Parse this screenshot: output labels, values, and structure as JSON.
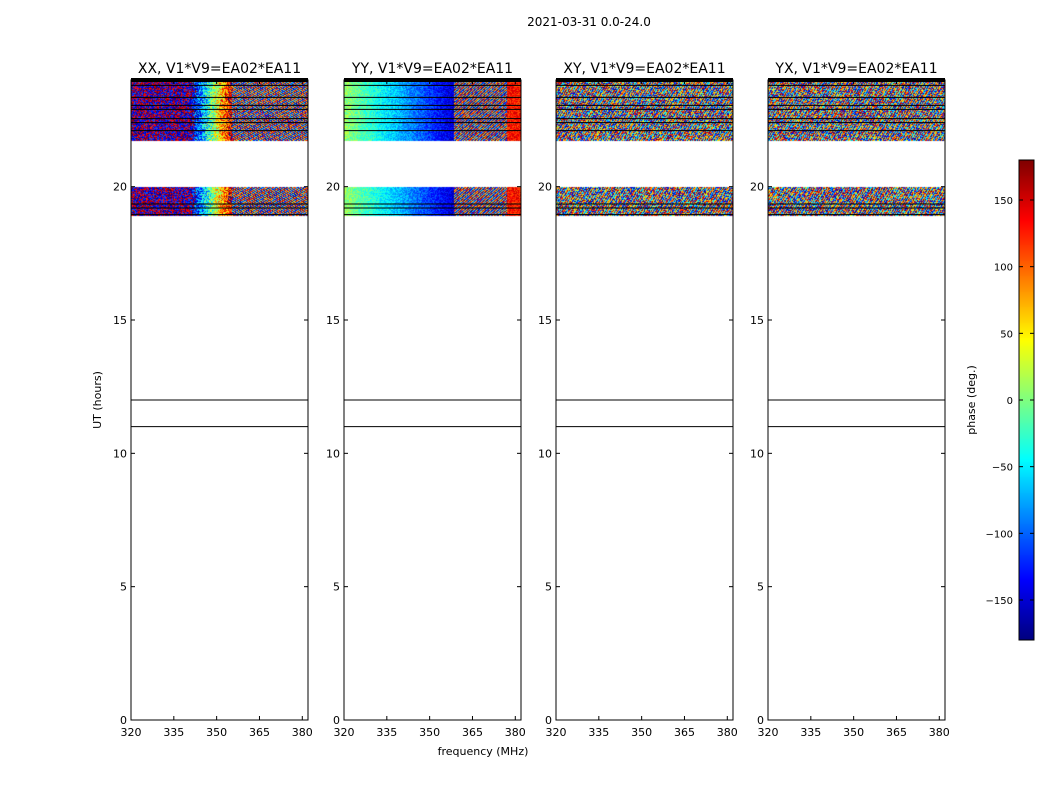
{
  "figure": {
    "suptitle": "2021-03-31 0.0-24.0",
    "xlabel": "frequency (MHz)",
    "ylabel": "UT (hours)"
  },
  "chart_data": {
    "type": "heatmap",
    "title": "2021-03-31 0.0-24.0",
    "xlabel": "frequency (MHz)",
    "ylabel": "UT (hours)",
    "xlim": [
      320,
      382
    ],
    "ylim": [
      0,
      24
    ],
    "xticks": [
      320,
      335,
      350,
      365,
      380
    ],
    "yticks": [
      0,
      5,
      10,
      15,
      20
    ],
    "panels": [
      {
        "title": "XX, V1*V9=EA02*EA11",
        "pattern": "xx"
      },
      {
        "title": "YY, V1*V9=EA02*EA11",
        "pattern": "yy"
      },
      {
        "title": "XY, V1*V9=EA02*EA11",
        "pattern": "cross"
      },
      {
        "title": "YX, V1*V9=EA02*EA11",
        "pattern": "cross"
      }
    ],
    "data_blocks_ut": [
      [
        18.9,
        20.0
      ],
      [
        21.7,
        24.0
      ]
    ],
    "flag_lines_ut": [
      11.0,
      12.0,
      18.95,
      19.2,
      19.35,
      22.1,
      22.4,
      22.55,
      22.9,
      23.05,
      23.35,
      23.8,
      24.0
    ],
    "colorbar": {
      "label": "phase (deg.)",
      "range": [
        -180,
        180
      ],
      "ticks": [
        150,
        100,
        50,
        0,
        -50,
        -100,
        -150
      ],
      "colormap": [
        "#00007f",
        "#0000ff",
        "#007fff",
        "#00ffff",
        "#7fff7f",
        "#ffff00",
        "#ff7f00",
        "#ff0000",
        "#7f0000"
      ]
    }
  }
}
